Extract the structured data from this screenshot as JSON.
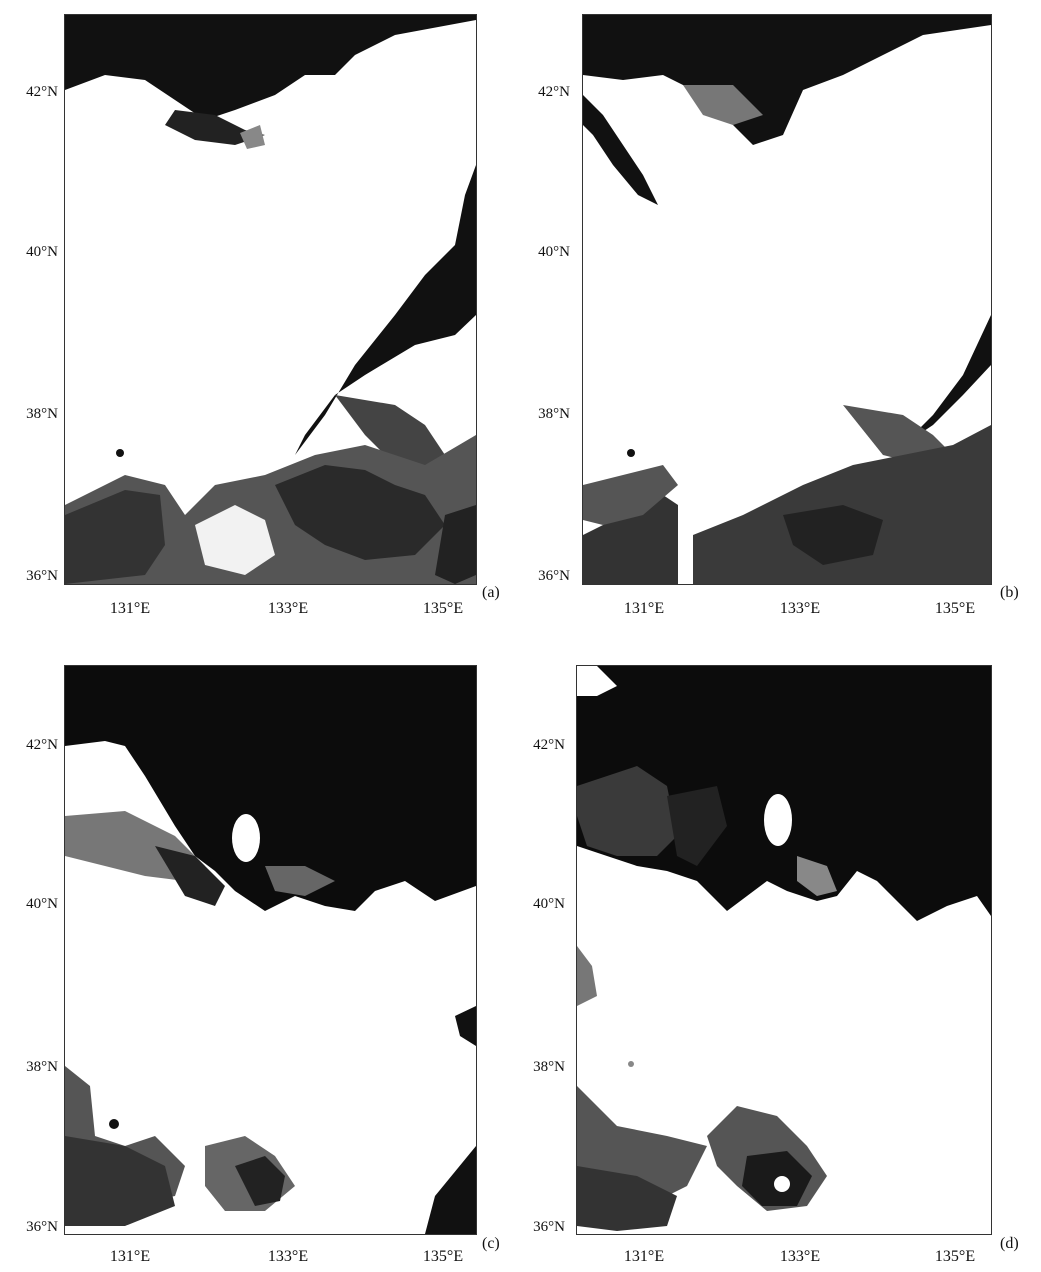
{
  "figure": {
    "panels": [
      {
        "label": "(a)",
        "lat_ticks": [
          "42°N",
          "40°N",
          "38°N",
          "36°N"
        ],
        "lon_ticks": [
          "131°E",
          "133°E",
          "135°E"
        ]
      },
      {
        "label": "(b)",
        "lat_ticks": [
          "42°N",
          "40°N",
          "38°N",
          "36°N"
        ],
        "lon_ticks": [
          "131°E",
          "133°E",
          "135°E"
        ]
      },
      {
        "label": "(c)",
        "lat_ticks": [
          "42°N",
          "40°N",
          "38°N",
          "36°N"
        ],
        "lon_ticks": [
          "131°E",
          "133°E",
          "135°E"
        ]
      },
      {
        "label": "(d)",
        "lat_ticks": [
          "42°N",
          "40°N",
          "38°N",
          "36°N"
        ],
        "lon_ticks": [
          "131°E",
          "133°E",
          "135°E"
        ]
      }
    ]
  }
}
